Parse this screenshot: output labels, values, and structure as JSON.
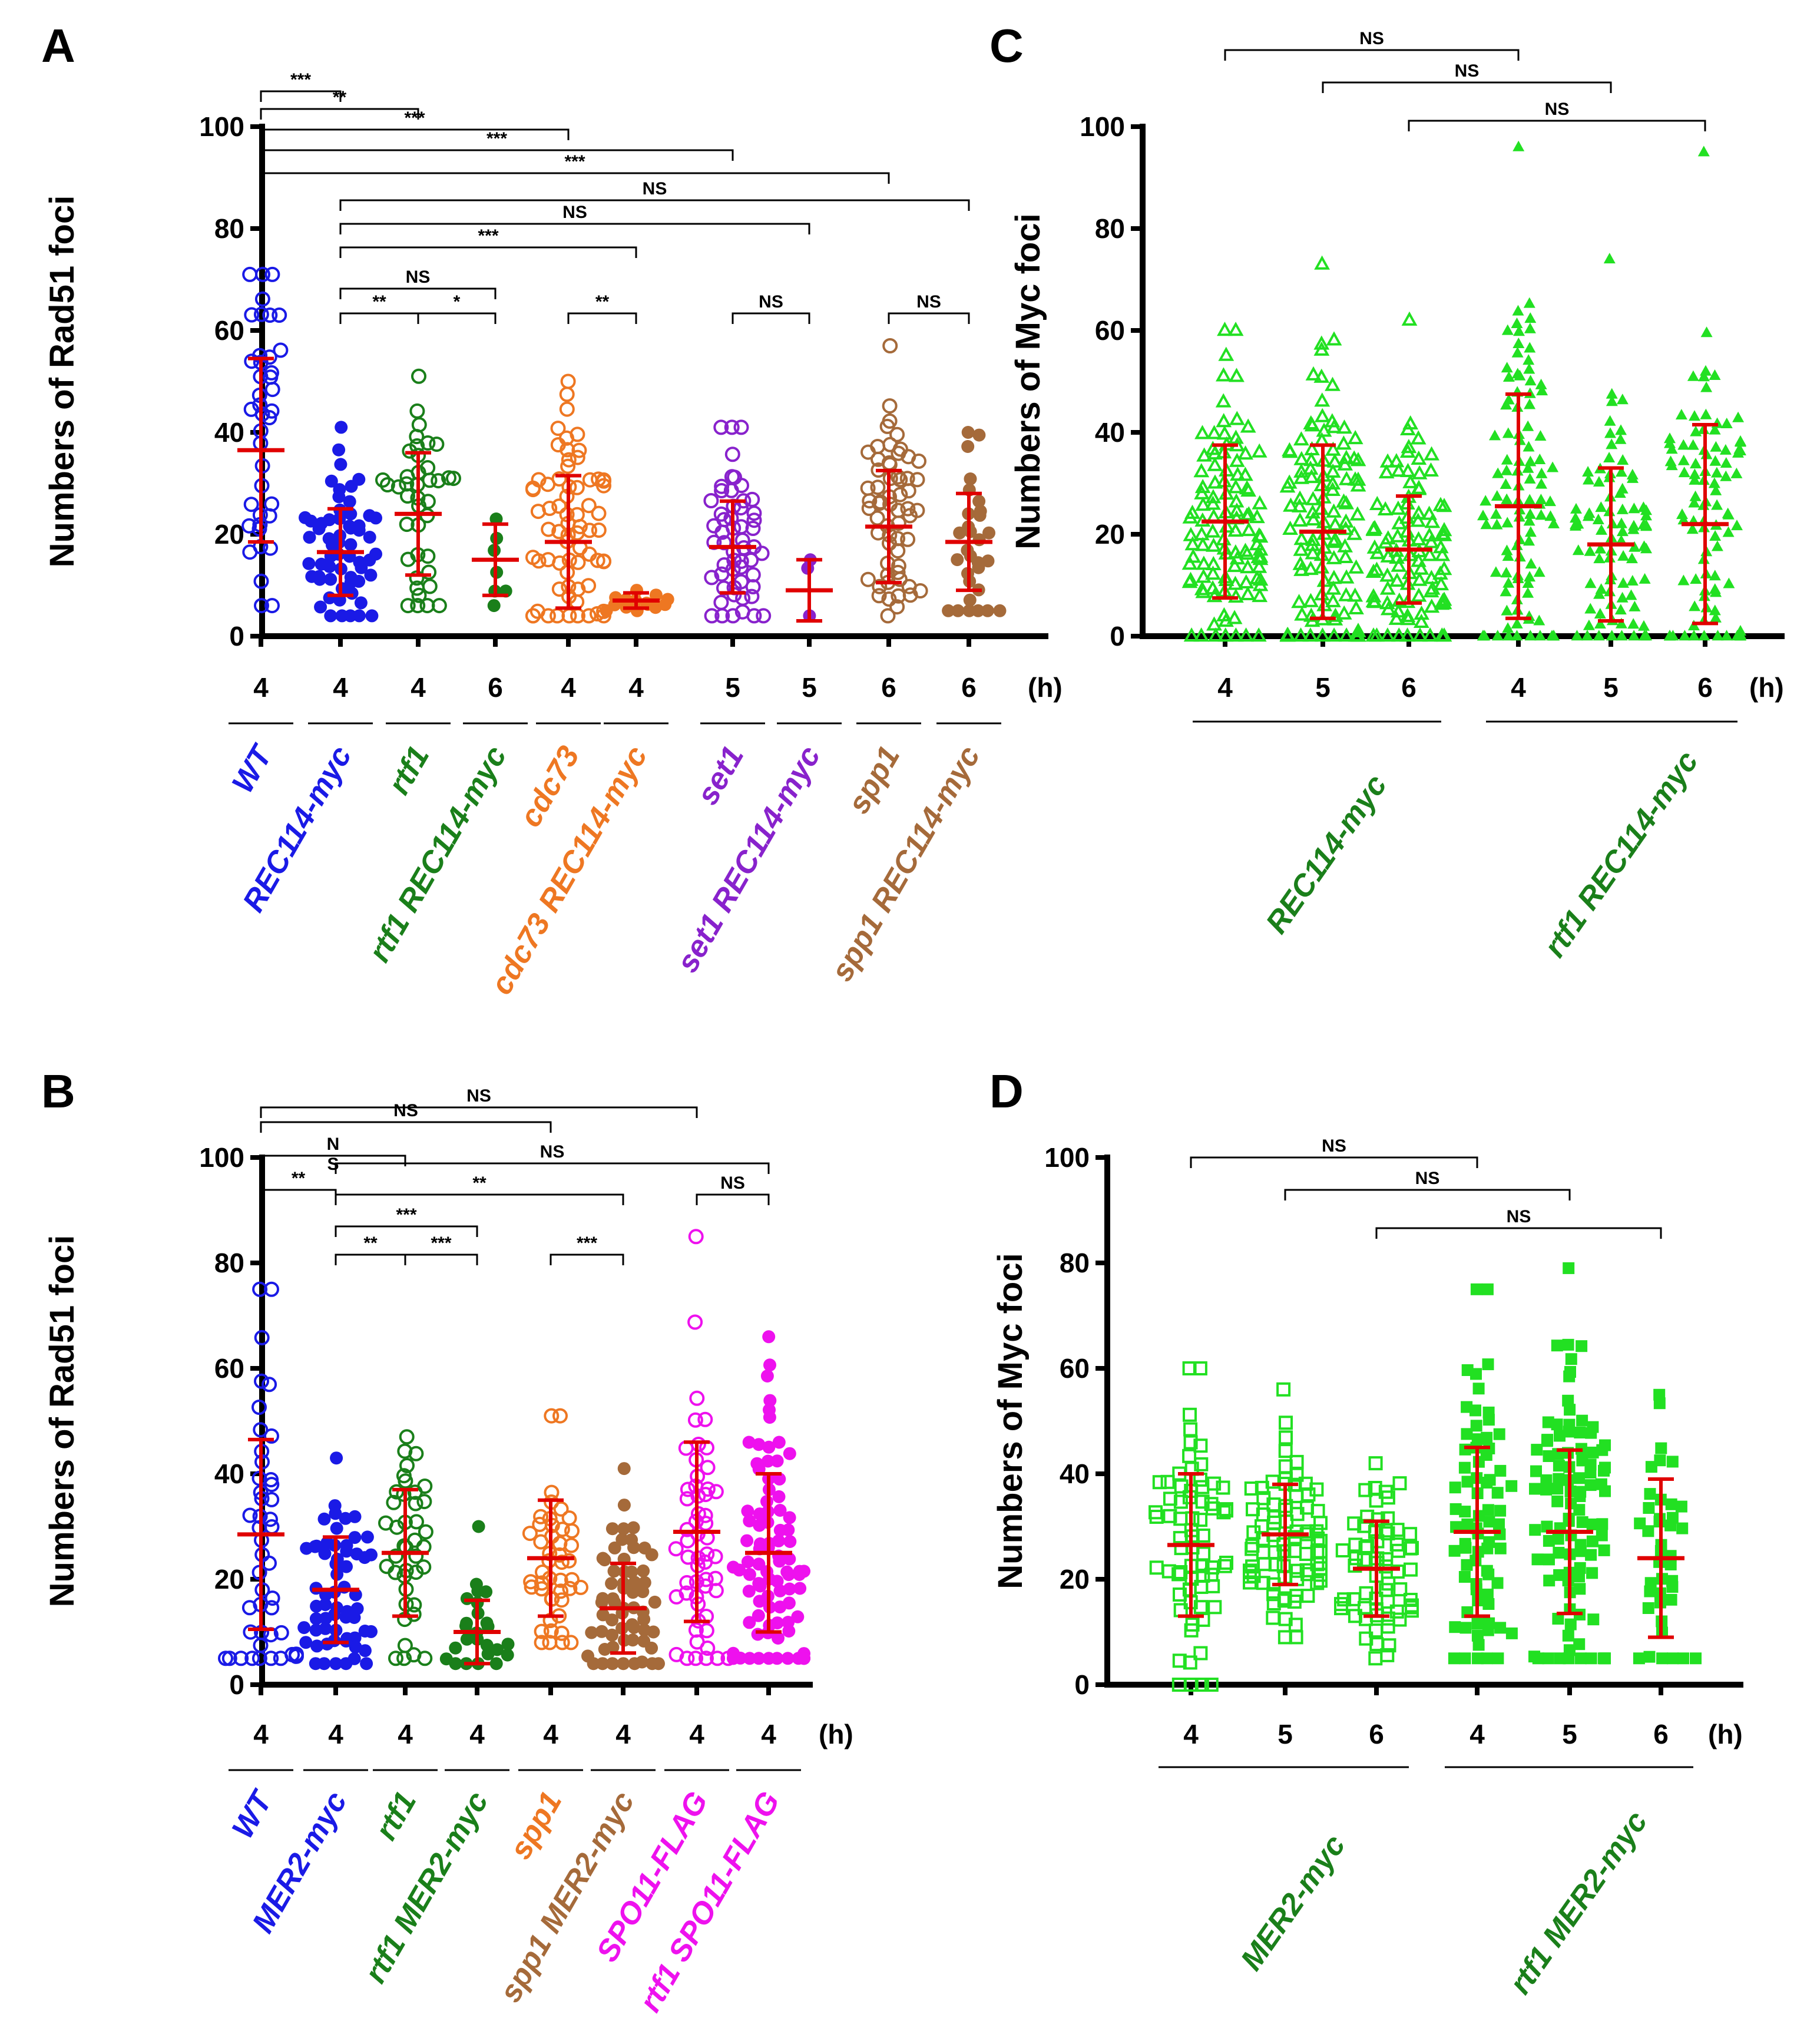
{
  "figure": {
    "colors": {
      "blue": "#1a1ae6",
      "green": "#1a7f1a",
      "orange": "#ee7722",
      "purple": "#8822cc",
      "brown": "#a56a3a",
      "magenta": "#ee11ee",
      "lightgreen": "#22e022",
      "red": "#e00000"
    },
    "time_unit": "(h)"
  },
  "chart_data": [
    {
      "panel": "A",
      "type": "scatter",
      "ylabel": "Numbers of Rad51 foci",
      "ylim": [
        0,
        100
      ],
      "yticks": [
        0,
        20,
        40,
        60,
        80,
        100
      ],
      "time_unit": "(h)",
      "categories": [
        {
          "time": "4",
          "strain": "WT",
          "color": "blue",
          "marker": "circle-open",
          "mean": 36.5,
          "sd": 18,
          "n": 40,
          "min": 6,
          "max": 71
        },
        {
          "time": "4",
          "strain": "REC114-myc",
          "color": "blue",
          "marker": "circle-filled",
          "mean": 16.5,
          "sd": 8.5,
          "n": 60,
          "min": 4,
          "max": 41
        },
        {
          "time": "4",
          "strain": "rtf1",
          "color": "green",
          "marker": "circle-open",
          "mean": 24,
          "sd": 12,
          "n": 40,
          "min": 6,
          "max": 51
        },
        {
          "time": "6",
          "strain": "rtf1 REC114-myc",
          "color": "green",
          "marker": "circle-filled",
          "mean": 15,
          "sd": 7,
          "n": 7,
          "min": 6,
          "max": 23
        },
        {
          "time": "4",
          "strain": "cdc73",
          "color": "orange",
          "marker": "circle-open",
          "mean": 18.5,
          "sd": 13,
          "n": 70,
          "min": 4,
          "max": 50
        },
        {
          "time": "4",
          "strain": "cdc73 REC114-myc",
          "color": "orange",
          "marker": "circle-filled",
          "mean": 7,
          "sd": 1.5,
          "n": 14,
          "min": 5,
          "max": 9
        },
        {
          "time": "5",
          "strain": "set1",
          "color": "purple",
          "marker": "circle-open",
          "mean": 17.5,
          "sd": 9,
          "n": 55,
          "min": 4,
          "max": 41
        },
        {
          "time": "5",
          "strain": "set1 REC114-myc",
          "color": "purple",
          "marker": "circle-filled",
          "mean": 9,
          "sd": 6,
          "n": 3,
          "min": 4,
          "max": 15
        },
        {
          "time": "6",
          "strain": "spp1",
          "color": "brown",
          "marker": "circle-open",
          "mean": 21.5,
          "sd": 11,
          "n": 60,
          "min": 4,
          "max": 57
        },
        {
          "time": "6",
          "strain": "spp1 REC114-myc",
          "color": "brown",
          "marker": "circle-filled",
          "mean": 18.5,
          "sd": 9.5,
          "n": 30,
          "min": 5,
          "max": 40
        }
      ],
      "comparisons": [
        {
          "from": 0,
          "to": 1,
          "label": "***"
        },
        {
          "from": 0,
          "to": 2,
          "label": "**"
        },
        {
          "from": 0,
          "to": 4,
          "label": "***"
        },
        {
          "from": 0,
          "to": 6,
          "label": "***"
        },
        {
          "from": 0,
          "to": 8,
          "label": "***"
        },
        {
          "from": 1,
          "to": 9,
          "label": "NS"
        },
        {
          "from": 1,
          "to": 7,
          "label": "NS"
        },
        {
          "from": 1,
          "to": 5,
          "label": "***"
        },
        {
          "from": 1,
          "to": 3,
          "label": "NS"
        },
        {
          "from": 1,
          "to": 2,
          "label": "**"
        },
        {
          "from": 2,
          "to": 3,
          "label": "*"
        },
        {
          "from": 4,
          "to": 5,
          "label": "**"
        },
        {
          "from": 6,
          "to": 7,
          "label": "NS"
        },
        {
          "from": 8,
          "to": 9,
          "label": "NS"
        }
      ]
    },
    {
      "panel": "B",
      "type": "scatter",
      "ylabel": "Numbers of Rad51 foci",
      "ylim": [
        0,
        100
      ],
      "yticks": [
        0,
        20,
        40,
        60,
        80,
        100
      ],
      "time_unit": "(h)",
      "categories": [
        {
          "time": "4",
          "strain": "WT",
          "color": "blue",
          "marker": "circle-open",
          "mean": 28.5,
          "sd": 18,
          "n": 45,
          "min": 5,
          "max": 75
        },
        {
          "time": "4",
          "strain": "MER2-myc",
          "color": "blue",
          "marker": "circle-filled",
          "mean": 18,
          "sd": 10,
          "n": 60,
          "min": 4,
          "max": 43
        },
        {
          "time": "4",
          "strain": "rtf1",
          "color": "green",
          "marker": "circle-open",
          "mean": 25,
          "sd": 12,
          "n": 40,
          "min": 5,
          "max": 47
        },
        {
          "time": "4",
          "strain": "rtf1 MER2-myc",
          "color": "green",
          "marker": "circle-filled",
          "mean": 10,
          "sd": 6,
          "n": 25,
          "min": 4,
          "max": 30
        },
        {
          "time": "4",
          "strain": "spp1",
          "color": "orange",
          "marker": "circle-open",
          "mean": 24,
          "sd": 11,
          "n": 45,
          "min": 8,
          "max": 51
        },
        {
          "time": "4",
          "strain": "spp1 MER2-myc",
          "color": "brown",
          "marker": "circle-filled",
          "mean": 14.5,
          "sd": 8.5,
          "n": 60,
          "min": 4,
          "max": 41
        },
        {
          "time": "4",
          "strain": "SPO11-FLAG",
          "color": "magenta",
          "marker": "circle-open",
          "mean": 29,
          "sd": 17,
          "n": 55,
          "min": 5,
          "max": 85
        },
        {
          "time": "4",
          "strain": "rtf1 SPO11-FLAG",
          "color": "magenta",
          "marker": "circle-filled",
          "mean": 25,
          "sd": 15,
          "n": 90,
          "min": 5,
          "max": 66
        }
      ],
      "comparisons": [
        {
          "from": 0,
          "to": 1,
          "label": "**"
        },
        {
          "from": 0,
          "to": 2,
          "label": "N\nS"
        },
        {
          "from": 0,
          "to": 4,
          "label": "NS"
        },
        {
          "from": 0,
          "to": 6,
          "label": "NS"
        },
        {
          "from": 1,
          "to": 7,
          "label": "NS"
        },
        {
          "from": 1,
          "to": 5,
          "label": "**"
        },
        {
          "from": 1,
          "to": 3,
          "label": "***"
        },
        {
          "from": 1,
          "to": 2,
          "label": "**"
        },
        {
          "from": 2,
          "to": 3,
          "label": "***"
        },
        {
          "from": 4,
          "to": 5,
          "label": "***"
        },
        {
          "from": 6,
          "to": 7,
          "label": "NS"
        }
      ]
    },
    {
      "panel": "C",
      "type": "scatter",
      "ylabel": "Numbers of Myc foci",
      "ylim": [
        0,
        100
      ],
      "yticks": [
        0,
        20,
        40,
        60,
        80,
        100
      ],
      "time_unit": "(h)",
      "categories": [
        {
          "time": "4",
          "color": "lightgreen",
          "marker": "triangle-open",
          "mean": 22.5,
          "sd": 15,
          "n": 110,
          "min": 0,
          "max": 60
        },
        {
          "time": "5",
          "color": "lightgreen",
          "marker": "triangle-open",
          "mean": 20.5,
          "sd": 17,
          "n": 120,
          "min": 0,
          "max": 73
        },
        {
          "time": "6",
          "color": "lightgreen",
          "marker": "triangle-open",
          "mean": 17,
          "sd": 10.5,
          "n": 100,
          "min": 0,
          "max": 62
        },
        {
          "time": "4",
          "color": "lightgreen",
          "marker": "triangle-filled",
          "mean": 25.5,
          "sd": 22,
          "n": 110,
          "min": 0,
          "max": 96
        },
        {
          "time": "5",
          "color": "lightgreen",
          "marker": "triangle-filled",
          "mean": 18,
          "sd": 15,
          "n": 90,
          "min": 0,
          "max": 74
        },
        {
          "time": "6",
          "color": "lightgreen",
          "marker": "triangle-filled",
          "mean": 22,
          "sd": 19.5,
          "n": 100,
          "min": 0,
          "max": 95
        }
      ],
      "groups": [
        {
          "label": "REC114-myc",
          "color": "green",
          "from": 0,
          "to": 2
        },
        {
          "label": "rtf1 REC114-myc",
          "color": "green",
          "from": 3,
          "to": 5
        }
      ],
      "comparisons": [
        {
          "from": 0,
          "to": 3,
          "label": "NS"
        },
        {
          "from": 1,
          "to": 4,
          "label": "NS"
        },
        {
          "from": 2,
          "to": 5,
          "label": "NS"
        }
      ]
    },
    {
      "panel": "D",
      "type": "scatter",
      "ylabel": "Numbers of Myc foci",
      "ylim": [
        0,
        100
      ],
      "yticks": [
        0,
        20,
        40,
        60,
        80,
        100
      ],
      "time_unit": "(h)",
      "categories": [
        {
          "time": "4",
          "color": "lightgreen",
          "marker": "square-open",
          "mean": 26.5,
          "sd": 13.5,
          "n": 70,
          "min": 0,
          "max": 60
        },
        {
          "time": "5",
          "color": "lightgreen",
          "marker": "square-open",
          "mean": 28.5,
          "sd": 9.5,
          "n": 85,
          "min": 9,
          "max": 56
        },
        {
          "time": "6",
          "color": "lightgreen",
          "marker": "square-open",
          "mean": 22,
          "sd": 9,
          "n": 65,
          "min": 5,
          "max": 42
        },
        {
          "time": "4",
          "color": "lightgreen",
          "marker": "square-filled",
          "mean": 29,
          "sd": 16,
          "n": 75,
          "min": 5,
          "max": 75
        },
        {
          "time": "5",
          "color": "lightgreen",
          "marker": "square-filled",
          "mean": 29,
          "sd": 15.5,
          "n": 100,
          "min": 5,
          "max": 79
        },
        {
          "time": "6",
          "color": "lightgreen",
          "marker": "square-filled",
          "mean": 24,
          "sd": 15,
          "n": 40,
          "min": 5,
          "max": 55
        }
      ],
      "groups": [
        {
          "label": "MER2-myc",
          "color": "green",
          "from": 0,
          "to": 2
        },
        {
          "label": "rtf1 MER2-myc",
          "color": "green",
          "from": 3,
          "to": 5
        }
      ],
      "comparisons": [
        {
          "from": 0,
          "to": 3,
          "label": "NS"
        },
        {
          "from": 1,
          "to": 4,
          "label": "NS"
        },
        {
          "from": 2,
          "to": 5,
          "label": "NS"
        }
      ]
    }
  ]
}
